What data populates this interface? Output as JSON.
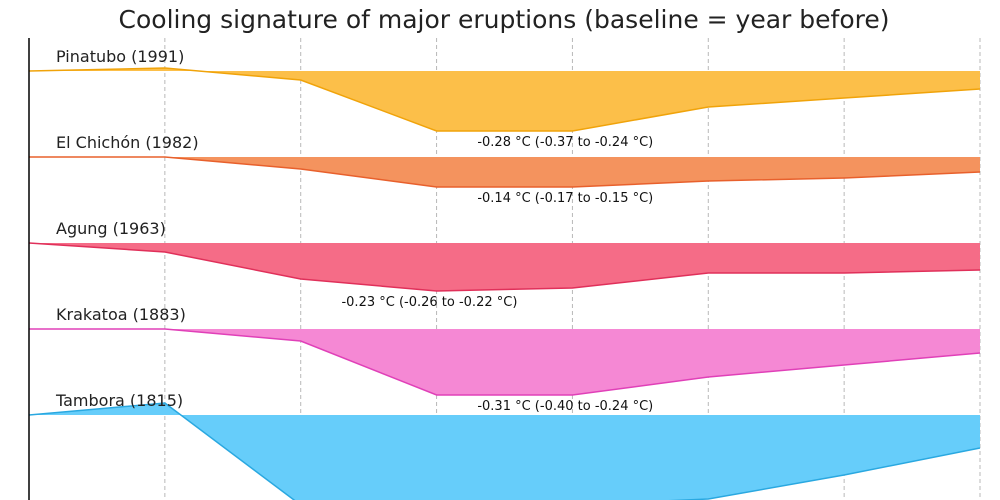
{
  "chart_data": {
    "type": "area",
    "title": "Cooling signature of major eruptions (baseline = year before)",
    "xlabel": "",
    "ylabel": "",
    "x": [
      -1,
      0,
      1,
      2,
      3,
      4,
      5,
      6
    ],
    "xlim": [
      -1,
      6
    ],
    "ylim_per_panel": [
      -0.4,
      0.05
    ],
    "grid": true,
    "series": [
      {
        "name": "Pinatubo (1991)",
        "color": "#fcbf49",
        "line_color": "#f0a30a",
        "values": [
          0.0,
          0.01,
          -0.03,
          -0.2,
          -0.2,
          -0.12,
          -0.09,
          -0.06
        ],
        "annotation": "-0.28 °C (-0.37 to -0.24 °C)",
        "annotation_x": 2.3
      },
      {
        "name": "El Chichón (1982)",
        "color": "#f4935e",
        "line_color": "#e8602c",
        "values": [
          0.0,
          0.0,
          -0.04,
          -0.1,
          -0.1,
          -0.08,
          -0.07,
          -0.05
        ],
        "annotation": "-0.14 °C (-0.17 to -0.15 °C)",
        "annotation_x": 2.3
      },
      {
        "name": "Agung (1963)",
        "color": "#f56c87",
        "line_color": "#e0305a",
        "values": [
          0.0,
          -0.03,
          -0.12,
          -0.16,
          -0.15,
          -0.1,
          -0.1,
          -0.09
        ],
        "annotation": "-0.23 °C (-0.26 to -0.22 °C)",
        "annotation_x": 1.3
      },
      {
        "name": "Krakatoa (1883)",
        "color": "#f588d4",
        "line_color": "#e040b8",
        "values": [
          0.0,
          0.0,
          -0.04,
          -0.22,
          -0.22,
          -0.16,
          -0.12,
          -0.08
        ],
        "annotation": "-0.31 °C (-0.40 to -0.24 °C)",
        "annotation_x": 2.3
      },
      {
        "name": "Tambora (1815)",
        "color": "#66cdfa",
        "line_color": "#2aa8e0",
        "values": [
          0.0,
          0.04,
          -0.3,
          -0.3,
          -0.3,
          -0.28,
          -0.2,
          -0.11
        ],
        "annotation": "",
        "annotation_x": 2.3
      }
    ]
  }
}
